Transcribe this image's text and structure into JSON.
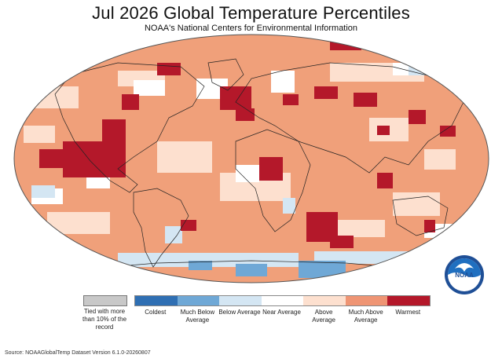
{
  "header": {
    "title": "Jul 2026 Global Temperature Percentiles",
    "subtitle": "NOAA's National Centers for Environmental Information"
  },
  "map": {
    "projection": "robinson",
    "ocean_base_color": "#f0a07a",
    "cell_colors_present": [
      "#b4182a",
      "#ef9574",
      "#fde0cf",
      "#ffffff",
      "#d4e6f3",
      "#6fa8d6"
    ]
  },
  "legend": {
    "tied_label": "Tied with more than 10% of the record",
    "tied_color": "#c8c8c8",
    "categories": [
      {
        "label": "Coldest",
        "color": "#2f6fb3"
      },
      {
        "label": "Much Below Average",
        "color": "#6fa8d6"
      },
      {
        "label": "Below Average",
        "color": "#d4e6f3"
      },
      {
        "label": "Near Average",
        "color": "#ffffff"
      },
      {
        "label": "Above Average",
        "color": "#fde0cf"
      },
      {
        "label": "Much Above Average",
        "color": "#ef9574"
      },
      {
        "label": "Warmest",
        "color": "#b4182a"
      }
    ]
  },
  "logo": {
    "text": "NOAA",
    "icon": "noaa-logo-icon"
  },
  "footer": {
    "source": "Source: NOAAGlobalTemp Dataset Version 6.1.0-20260807"
  }
}
